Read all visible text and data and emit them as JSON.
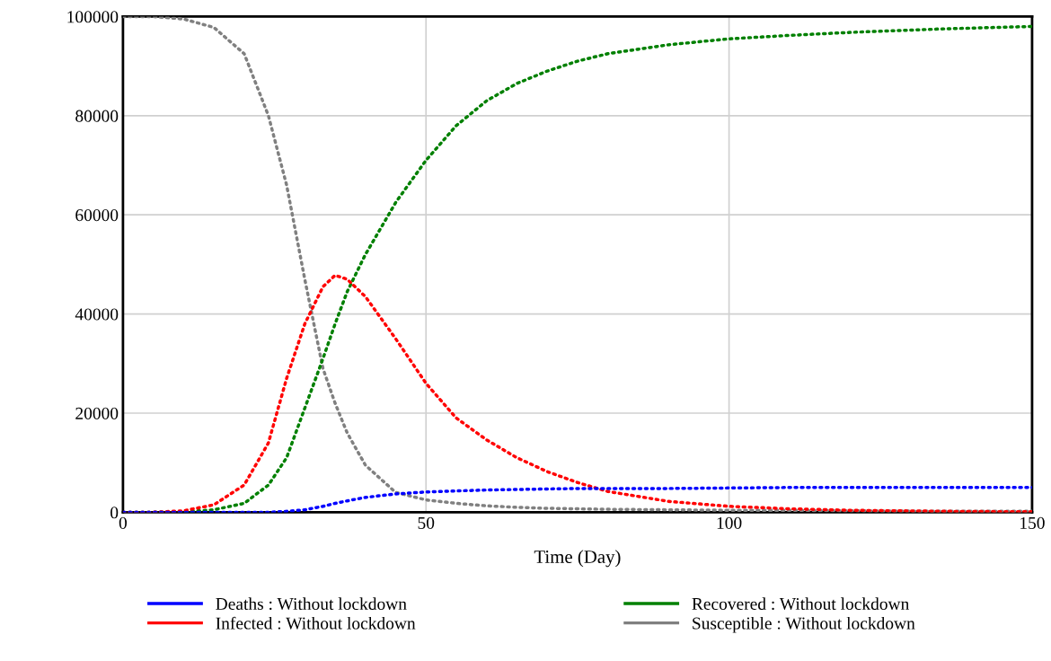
{
  "chart_data": {
    "type": "line",
    "xlabel": "Time (Day)",
    "x": [
      0,
      5,
      10,
      15,
      20,
      24,
      27,
      30,
      33,
      35,
      37,
      40,
      45,
      50,
      55,
      60,
      65,
      70,
      75,
      80,
      90,
      100,
      110,
      120,
      135,
      150
    ],
    "series": [
      {
        "name": "Deaths : Without lockdown",
        "color": "#0000ff",
        "values": [
          0,
          0,
          0,
          0,
          0,
          0,
          200,
          500,
          1200,
          1800,
          2300,
          3000,
          3700,
          4100,
          4300,
          4500,
          4600,
          4700,
          4800,
          4800,
          4800,
          4900,
          5000,
          5000,
          5000,
          5000
        ]
      },
      {
        "name": "Infected : Without lockdown",
        "color": "#ff0000",
        "values": [
          0,
          0,
          300,
          1500,
          5500,
          14000,
          27000,
          38000,
          45500,
          47800,
          47000,
          43500,
          35000,
          26000,
          19000,
          14600,
          11000,
          8200,
          6000,
          4200,
          2200,
          1200,
          700,
          400,
          200,
          100
        ]
      },
      {
        "name": "Recovered : Without lockdown",
        "color": "#008000",
        "values": [
          0,
          0,
          100,
          500,
          1800,
          5500,
          11000,
          21000,
          31000,
          38000,
          44500,
          52000,
          62500,
          71000,
          78000,
          83000,
          86500,
          89000,
          91000,
          92500,
          94300,
          95500,
          96200,
          96800,
          97500,
          98000
        ]
      },
      {
        "name": "Susceptible : Without lockdown",
        "color": "#808080",
        "values": [
          100000,
          100000,
          99500,
          97800,
          92500,
          80000,
          66000,
          47000,
          29000,
          22000,
          16000,
          9500,
          4000,
          2500,
          1800,
          1300,
          1000,
          800,
          700,
          600,
          500,
          400,
          400,
          300,
          200,
          200
        ]
      }
    ],
    "xlim": [
      0,
      150
    ],
    "xticks": [
      0,
      50,
      100,
      150
    ],
    "ylim": [
      0,
      100000
    ],
    "yticks": [
      0,
      20000,
      40000,
      60000,
      80000,
      100000
    ],
    "grid": true,
    "legend": "bottom",
    "line_style": "dotted",
    "marker": "none"
  }
}
